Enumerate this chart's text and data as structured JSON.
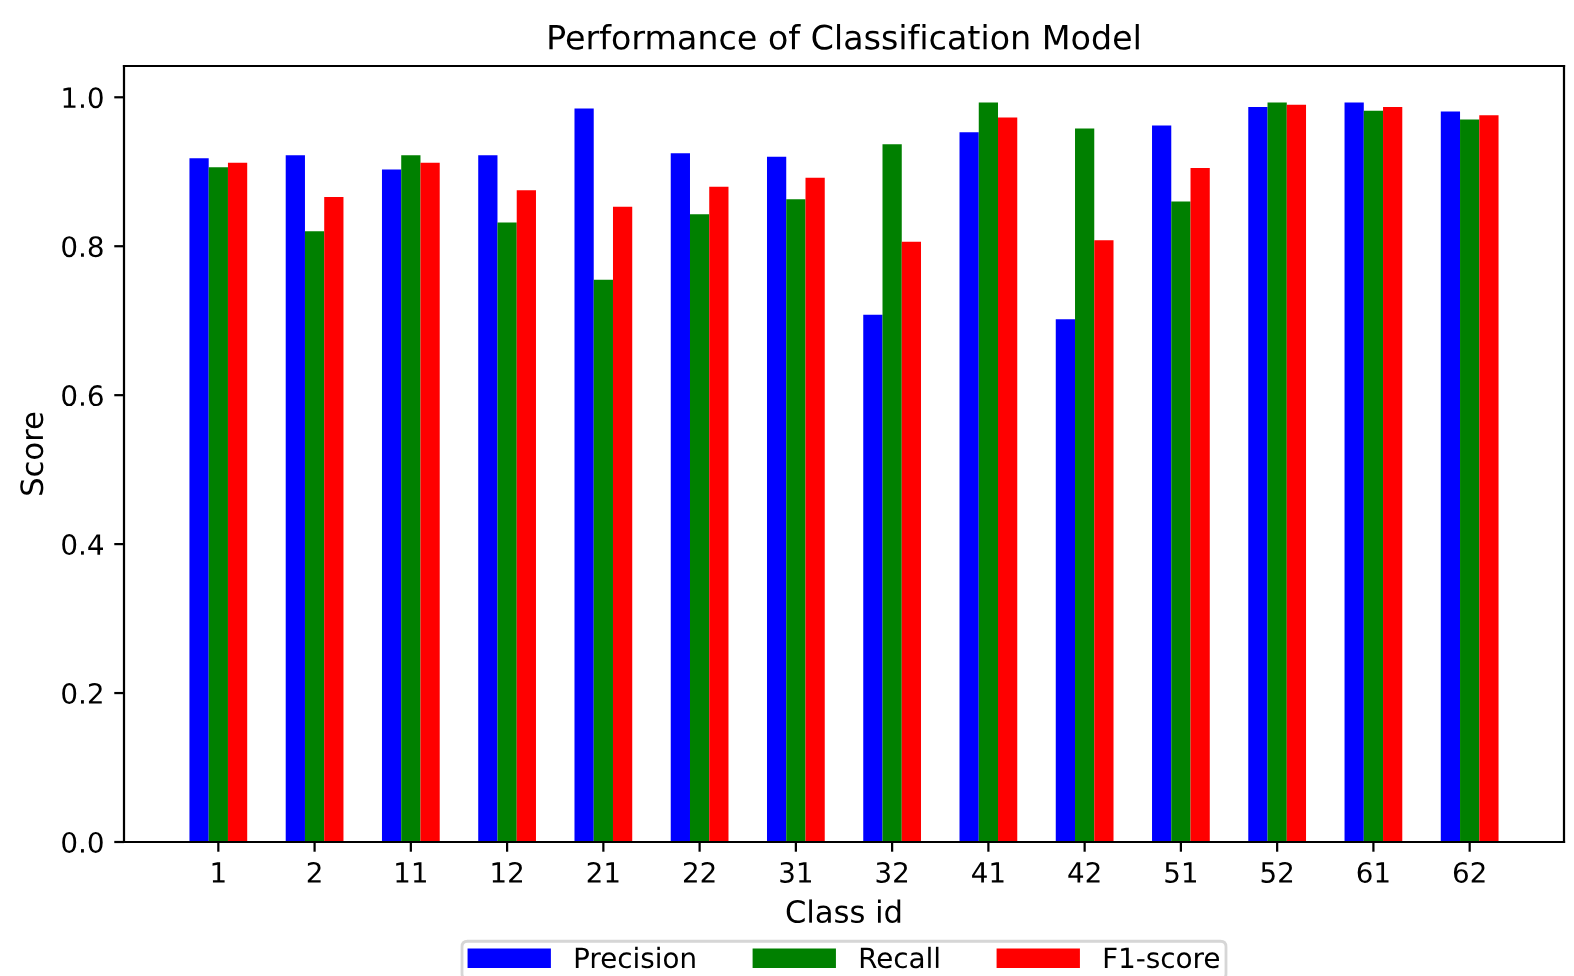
{
  "chart_data": {
    "type": "bar",
    "title": "Performance of Classification Model",
    "xlabel": "Class id",
    "ylabel": "Score",
    "categories": [
      "1",
      "2",
      "11",
      "12",
      "21",
      "22",
      "31",
      "32",
      "41",
      "42",
      "51",
      "52",
      "61",
      "62"
    ],
    "series": [
      {
        "name": "Precision",
        "color": "#0000ff",
        "values": [
          0.918,
          0.922,
          0.903,
          0.922,
          0.985,
          0.925,
          0.92,
          0.708,
          0.953,
          0.702,
          0.962,
          0.987,
          0.993,
          0.981
        ]
      },
      {
        "name": "Recall",
        "color": "#008000",
        "values": [
          0.906,
          0.82,
          0.922,
          0.832,
          0.755,
          0.843,
          0.863,
          0.937,
          0.993,
          0.958,
          0.86,
          0.993,
          0.982,
          0.97
        ]
      },
      {
        "name": "F1-score",
        "color": "#ff0000",
        "values": [
          0.912,
          0.866,
          0.912,
          0.875,
          0.853,
          0.88,
          0.892,
          0.806,
          0.973,
          0.808,
          0.905,
          0.99,
          0.987,
          0.976
        ]
      }
    ],
    "ylim": [
      0,
      1.042
    ],
    "yticks": [
      {
        "value": 0,
        "label": "0.0"
      },
      {
        "value": 0.2,
        "label": "0.2"
      },
      {
        "value": 0.4,
        "label": "0.4"
      },
      {
        "value": 0.6,
        "label": "0.6"
      },
      {
        "value": 0.8,
        "label": "0.8"
      },
      {
        "value": 1.0,
        "label": "1.0"
      }
    ],
    "grid": false,
    "legend": "bottom"
  }
}
